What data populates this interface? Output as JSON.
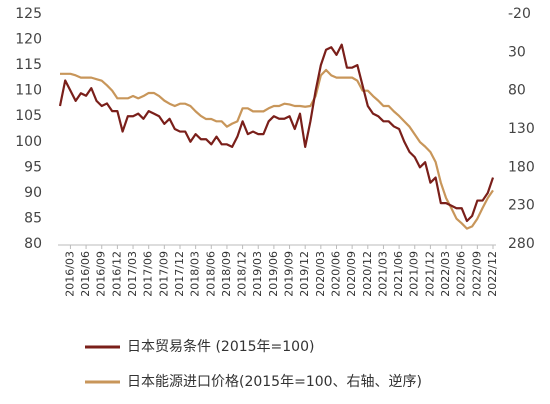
{
  "chart_data": {
    "type": "line",
    "categories": [
      null,
      null,
      "2016/03",
      null,
      null,
      "2016/06",
      null,
      null,
      "2016/09",
      null,
      null,
      "2016/12",
      null,
      null,
      "2017/03",
      null,
      null,
      "2017/06",
      null,
      null,
      "2017/09",
      null,
      null,
      "2017/12",
      null,
      null,
      "2018/03",
      null,
      null,
      "2018/06",
      null,
      null,
      "2018/09",
      null,
      null,
      "2018/12",
      null,
      null,
      "2019/03",
      null,
      null,
      "2019/06",
      null,
      null,
      "2019/09",
      null,
      null,
      "2019/12",
      null,
      null,
      "2020/03",
      null,
      null,
      "2020/06",
      null,
      null,
      "2020/09",
      null,
      null,
      "2020/12",
      null,
      null,
      "2021/03",
      null,
      null,
      "2021/06",
      null,
      null,
      "2021/09",
      null,
      null,
      "2021/12",
      null,
      null,
      "2022/03",
      null,
      null,
      "2022/06",
      null,
      null,
      "2022/09",
      null,
      null,
      "2022/12"
    ],
    "series": [
      {
        "name": "日本贸易条件 (2015年=100)",
        "color": "#7a1f1a",
        "values": [
          107,
          112,
          110,
          108,
          109.5,
          109,
          110.5,
          108,
          107,
          107.5,
          106,
          106,
          102,
          105,
          105,
          105.5,
          104.5,
          106,
          105.5,
          105,
          103.5,
          104.5,
          102.5,
          102,
          102,
          100,
          101.5,
          100.5,
          100.5,
          99.5,
          101,
          99.5,
          99.5,
          99,
          101,
          104,
          101.5,
          102,
          101.5,
          101.5,
          104,
          105,
          104.5,
          104.5,
          105,
          102.5,
          105.5,
          99,
          104,
          110,
          115,
          118,
          118.5,
          117,
          119,
          114.5,
          114.5,
          115,
          111,
          107,
          105.5,
          105,
          104,
          104,
          103,
          102.5,
          100,
          98,
          97,
          95,
          96,
          92,
          93,
          88,
          88,
          87.5,
          87,
          87,
          84.5,
          85.5,
          88.5,
          88.5,
          90,
          93
        ]
      },
      {
        "name": "日本能源进口价格(2015年=100、右轴、逆序)",
        "color": "#c8965a",
        "axis": "y2",
        "values": [
          58,
          58,
          58,
          60,
          63,
          63,
          63,
          65,
          67,
          73,
          80,
          90,
          90,
          90,
          87,
          90,
          87,
          83,
          83,
          87,
          93,
          97,
          100,
          97,
          97,
          100,
          107,
          113,
          117,
          117,
          120,
          120,
          127,
          123,
          120,
          103,
          103,
          107,
          107,
          107,
          103,
          100,
          100,
          97,
          98,
          100,
          100,
          101,
          100,
          87,
          60,
          53,
          60,
          63,
          63,
          63,
          63,
          67,
          80,
          80,
          87,
          93,
          100,
          100,
          107,
          113,
          120,
          127,
          137,
          147,
          153,
          160,
          173,
          200,
          220,
          233,
          247,
          253,
          260,
          257,
          247,
          233,
          220,
          210
        ]
      }
    ],
    "ylim": [
      80,
      125
    ],
    "yticks": [
      80,
      85,
      90,
      95,
      100,
      105,
      110,
      115,
      120,
      125
    ],
    "y2lim": [
      280,
      -20
    ],
    "y2ticks": [
      -20,
      30,
      80,
      130,
      180,
      230,
      280
    ],
    "y2_inverted": true,
    "grid": false
  }
}
